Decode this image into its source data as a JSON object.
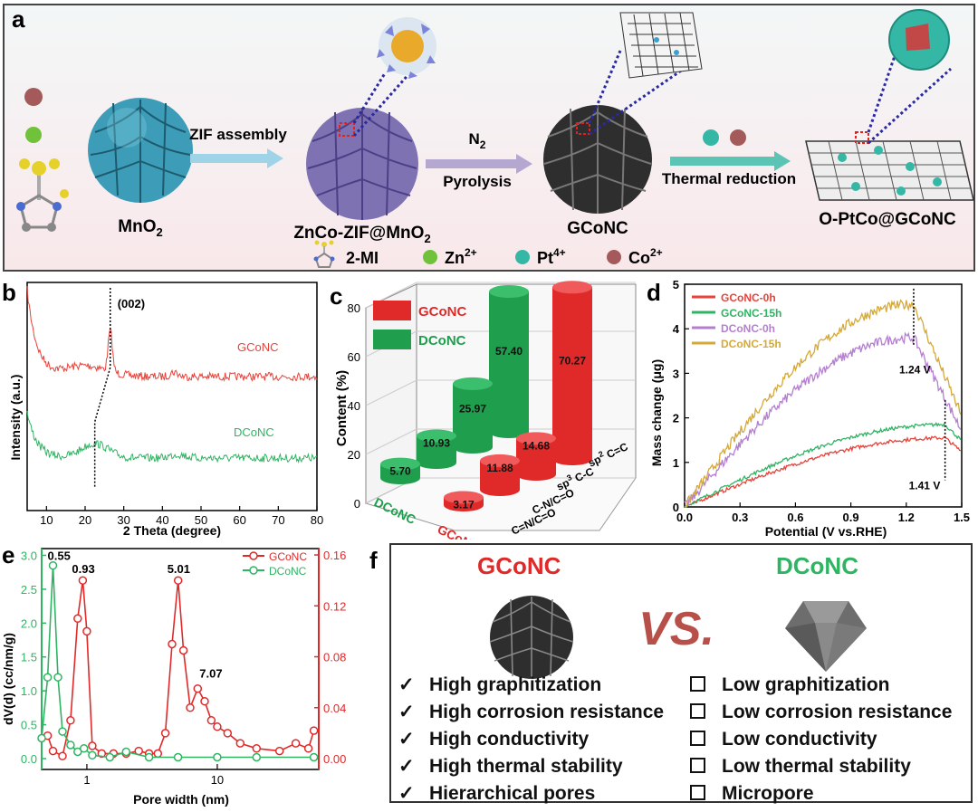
{
  "panel_a": {
    "label": "a",
    "materials": {
      "mno2": "MnO",
      "mno2_sub": "2",
      "zif": "ZnCo-ZIF@MnO",
      "zif_sub": "2",
      "gconc": "GCoNC",
      "final": "O-PtCo@GCoNC"
    },
    "steps": {
      "zif_assembly": "ZIF assembly",
      "n2": "N",
      "n2_sub": "2",
      "pyrolysis": "Pyrolysis",
      "thermal_reduction": "Thermal reduction"
    },
    "legend": {
      "mi": "2-MI",
      "zn": "Zn",
      "zn_sup": "2+",
      "pt": "Pt",
      "pt_sup": "4+",
      "co": "Co",
      "co_sup": "2+"
    },
    "colors": {
      "zn": "#6fc23a",
      "pt": "#35b7a6",
      "co": "#a45a5a",
      "mno2": "#3d9db8",
      "zif": "#7f72b3",
      "gconc": "#2e2e2e"
    }
  },
  "panel_b": {
    "label": "b",
    "chart_data": {
      "type": "line",
      "xlabel": "2 Theta (degree)",
      "ylabel": "Intensity (a.u.)",
      "xlim": [
        5,
        80
      ],
      "xticks": [
        10,
        20,
        30,
        40,
        50,
        60,
        70,
        80
      ],
      "annotation": "(002)",
      "series": [
        {
          "name": "GCoNC",
          "color": "#e8423a",
          "peak_2theta": 26.5
        },
        {
          "name": "DCoNC",
          "color": "#2fb463",
          "peak_2theta": 22.5
        }
      ]
    }
  },
  "panel_c": {
    "label": "c",
    "chart_data": {
      "type": "bar",
      "ylabel": "Content (%)",
      "ylim": [
        0,
        80
      ],
      "yticks": [
        0,
        20,
        40,
        60,
        80
      ],
      "categories": [
        "C=N/C=O",
        "C-N/C=O",
        "sp3 C-C",
        "sp2 C=C"
      ],
      "category_labels": [
        {
          "pre": "",
          "sup": "",
          "post": "C=N/C=O"
        },
        {
          "pre": "",
          "sup": "",
          "post": "C-N/C=O"
        },
        {
          "pre": "sp",
          "sup": "3",
          "post": " C-C"
        },
        {
          "pre": "sp",
          "sup": "2",
          "post": " C=C"
        }
      ],
      "series": [
        {
          "name": "GCoNC",
          "color": "#e02a2a",
          "values": [
            3.17,
            11.88,
            14.68,
            70.27
          ]
        },
        {
          "name": "DCoNC",
          "color": "#1f9e4e",
          "values": [
            5.7,
            10.93,
            25.97,
            57.4
          ]
        }
      ]
    }
  },
  "panel_d": {
    "label": "d",
    "chart_data": {
      "type": "line",
      "xlabel": "Potential (V vs.RHE)",
      "ylabel": "Mass change (μg)",
      "xlim": [
        0.0,
        1.5
      ],
      "ylim": [
        0,
        5
      ],
      "xticks": [
        "0.0",
        "0.3",
        "0.6",
        "0.9",
        "1.2",
        "1.5"
      ],
      "yticks": [
        0,
        1,
        2,
        3,
        4,
        5
      ],
      "annotations": [
        "1.24 V",
        "1.41 V"
      ],
      "series": [
        {
          "name": "GCoNC-0h",
          "color": "#e8423a",
          "peak_x": 1.41,
          "peak_y": 1.55
        },
        {
          "name": "GCoNC-15h",
          "color": "#2fb463",
          "peak_x": 1.41,
          "peak_y": 1.85
        },
        {
          "name": "DCoNC-0h",
          "color": "#b57fd0",
          "peak_x": 1.24,
          "peak_y": 3.8
        },
        {
          "name": "DCoNC-15h",
          "color": "#d4a93a",
          "peak_x": 1.24,
          "peak_y": 4.55
        }
      ]
    }
  },
  "panel_e": {
    "label": "e",
    "chart_data": {
      "type": "line",
      "xlabel": "Pore width (nm)",
      "ylabel": "dV(d) (cc/nm/g)",
      "xscale": "log",
      "xticks": [
        "1",
        "10"
      ],
      "yticks_left": [
        "0.0",
        "0.5",
        "1.0",
        "1.5",
        "2.0",
        "2.5",
        "3.0"
      ],
      "yticks_right": [
        "0.00",
        "0.04",
        "0.08",
        "0.12",
        "0.16"
      ],
      "peak_labels": [
        "0.55",
        "0.93",
        "5.01",
        "7.07"
      ],
      "series": [
        {
          "name": "GCoNC",
          "color": "#e02a2a",
          "axis": "right",
          "x": [
            0.5,
            0.55,
            0.65,
            0.75,
            0.85,
            0.93,
            1.0,
            1.1,
            1.3,
            1.6,
            2.0,
            2.5,
            3.0,
            3.5,
            4.0,
            4.5,
            5.01,
            5.5,
            6.2,
            7.07,
            8.0,
            9.0,
            10.0,
            12.0,
            15.0,
            20.0,
            30.0,
            40.0,
            50.0,
            55.0
          ],
          "y": [
            0.018,
            0.006,
            0.002,
            0.03,
            0.11,
            0.14,
            0.1,
            0.01,
            0.004,
            0.004,
            0.004,
            0.006,
            0.004,
            0.004,
            0.02,
            0.09,
            0.14,
            0.085,
            0.04,
            0.055,
            0.045,
            0.03,
            0.025,
            0.02,
            0.012,
            0.008,
            0.006,
            0.012,
            0.008,
            0.022
          ]
        },
        {
          "name": "DCoNC",
          "color": "#2fb463",
          "axis": "left",
          "x": [
            0.45,
            0.5,
            0.55,
            0.6,
            0.65,
            0.75,
            0.85,
            0.95,
            1.1,
            1.5,
            2.0,
            3.0,
            5.0,
            10.0,
            20.0,
            55.0
          ],
          "y": [
            0.3,
            1.2,
            2.85,
            1.2,
            0.4,
            0.2,
            0.1,
            0.15,
            0.05,
            0.02,
            0.1,
            0.02,
            0.02,
            0.02,
            0.02,
            0.02
          ]
        }
      ]
    }
  },
  "panel_f": {
    "label": "f",
    "left_title": "GCoNC",
    "right_title": "DCoNC",
    "vs": "VS.",
    "check_mark": "✓",
    "left_items": [
      "High graphitization",
      "High corrosion resistance",
      "High conductivity",
      "High thermal stability",
      "Hierarchical pores"
    ],
    "right_items": [
      "Low graphitization",
      "Low corrosion resistance",
      "Low conductivity",
      "Low thermal stability",
      "Micropore"
    ],
    "colors": {
      "left_title": "#e02a2a",
      "right_title": "#2fb463",
      "vs": "#b8504a"
    }
  }
}
